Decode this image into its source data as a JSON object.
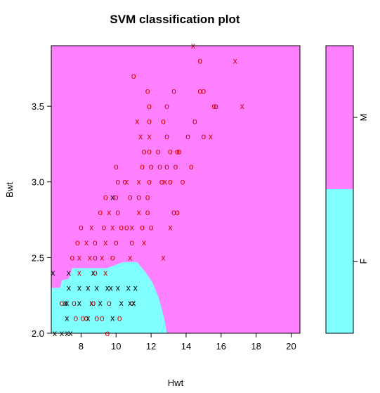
{
  "chart_data": {
    "type": "scatter",
    "title": "SVM classification plot",
    "xlabel": "Hwt",
    "ylabel": "Bwt",
    "xlim": [
      6.3,
      20.5
    ],
    "ylim": [
      2.0,
      3.9
    ],
    "x_ticks": [
      "8",
      "10",
      "12",
      "14",
      "16",
      "18",
      "20"
    ],
    "y_ticks": [
      "2.0",
      "2.5",
      "3.0",
      "3.5"
    ],
    "colors": {
      "M": "#ff80ff",
      "F": "#80ffff",
      "points": "#d00000",
      "support_vectors": "#000000"
    },
    "legend": {
      "position": "right",
      "classes": [
        {
          "label": "M",
          "color": "#ff80ff"
        },
        {
          "label": "F",
          "color": "#80ffff"
        }
      ]
    },
    "f_region_boundary": [
      [
        6.3,
        2.3
      ],
      [
        6.8,
        2.3
      ],
      [
        6.9,
        2.35
      ],
      [
        7.3,
        2.36
      ],
      [
        7.5,
        2.43
      ],
      [
        9.5,
        2.43
      ],
      [
        10.4,
        2.47
      ],
      [
        11.2,
        2.47
      ],
      [
        11.7,
        2.4
      ],
      [
        12.1,
        2.33
      ],
      [
        12.45,
        2.23
      ],
      [
        12.75,
        2.1
      ],
      [
        12.9,
        2.0
      ],
      [
        6.3,
        2.0
      ]
    ],
    "points": [
      {
        "x": 14.4,
        "y": 3.9,
        "m": "x",
        "c": "r"
      },
      {
        "x": 14.8,
        "y": 3.8,
        "m": "o",
        "c": "r"
      },
      {
        "x": 16.8,
        "y": 3.8,
        "m": "x",
        "c": "r"
      },
      {
        "x": 11.0,
        "y": 3.7,
        "m": "o",
        "c": "r"
      },
      {
        "x": 11.8,
        "y": 3.6,
        "m": "o",
        "c": "r"
      },
      {
        "x": 13.3,
        "y": 3.6,
        "m": "o",
        "c": "r"
      },
      {
        "x": 14.8,
        "y": 3.6,
        "m": "o",
        "c": "r"
      },
      {
        "x": 15.0,
        "y": 3.6,
        "m": "o",
        "c": "r"
      },
      {
        "x": 11.9,
        "y": 3.5,
        "m": "o",
        "c": "r"
      },
      {
        "x": 12.9,
        "y": 3.5,
        "m": "o",
        "c": "r"
      },
      {
        "x": 15.6,
        "y": 3.5,
        "m": "o",
        "c": "r"
      },
      {
        "x": 15.7,
        "y": 3.5,
        "m": "o",
        "c": "r"
      },
      {
        "x": 17.2,
        "y": 3.5,
        "m": "x",
        "c": "r"
      },
      {
        "x": 11.2,
        "y": 3.4,
        "m": "x",
        "c": "r"
      },
      {
        "x": 11.9,
        "y": 3.4,
        "m": "o",
        "c": "r"
      },
      {
        "x": 12.7,
        "y": 3.4,
        "m": "o",
        "c": "r"
      },
      {
        "x": 14.5,
        "y": 3.4,
        "m": "o",
        "c": "r"
      },
      {
        "x": 11.4,
        "y": 3.3,
        "m": "x",
        "c": "r"
      },
      {
        "x": 11.9,
        "y": 3.3,
        "m": "x",
        "c": "r"
      },
      {
        "x": 12.9,
        "y": 3.3,
        "m": "o",
        "c": "r"
      },
      {
        "x": 14.1,
        "y": 3.3,
        "m": "o",
        "c": "r"
      },
      {
        "x": 15.0,
        "y": 3.3,
        "m": "o",
        "c": "r"
      },
      {
        "x": 15.4,
        "y": 3.3,
        "m": "x",
        "c": "r"
      },
      {
        "x": 11.6,
        "y": 3.2,
        "m": "o",
        "c": "r"
      },
      {
        "x": 11.9,
        "y": 3.2,
        "m": "o",
        "c": "r"
      },
      {
        "x": 12.4,
        "y": 3.2,
        "m": "o",
        "c": "r"
      },
      {
        "x": 13.1,
        "y": 3.2,
        "m": "o",
        "c": "r"
      },
      {
        "x": 13.5,
        "y": 3.2,
        "m": "o",
        "c": "r"
      },
      {
        "x": 13.6,
        "y": 3.2,
        "m": "o",
        "c": "r"
      },
      {
        "x": 10.0,
        "y": 3.1,
        "m": "o",
        "c": "r"
      },
      {
        "x": 11.5,
        "y": 3.1,
        "m": "o",
        "c": "r"
      },
      {
        "x": 12.0,
        "y": 3.1,
        "m": "o",
        "c": "r"
      },
      {
        "x": 12.5,
        "y": 3.1,
        "m": "o",
        "c": "r"
      },
      {
        "x": 12.9,
        "y": 3.1,
        "m": "o",
        "c": "r"
      },
      {
        "x": 13.4,
        "y": 3.1,
        "m": "o",
        "c": "r"
      },
      {
        "x": 14.3,
        "y": 3.1,
        "m": "o",
        "c": "r"
      },
      {
        "x": 10.1,
        "y": 3.0,
        "m": "o",
        "c": "r"
      },
      {
        "x": 10.5,
        "y": 3.0,
        "m": "o",
        "c": "r"
      },
      {
        "x": 10.6,
        "y": 3.0,
        "m": "x",
        "c": "r"
      },
      {
        "x": 11.3,
        "y": 3.0,
        "m": "x",
        "c": "r"
      },
      {
        "x": 11.9,
        "y": 3.0,
        "m": "o",
        "c": "r"
      },
      {
        "x": 12.6,
        "y": 3.0,
        "m": "o",
        "c": "r"
      },
      {
        "x": 12.8,
        "y": 3.0,
        "m": "x",
        "c": "r"
      },
      {
        "x": 13.1,
        "y": 3.0,
        "m": "o",
        "c": "r"
      },
      {
        "x": 13.8,
        "y": 3.0,
        "m": "o",
        "c": "r"
      },
      {
        "x": 9.4,
        "y": 2.9,
        "m": "o",
        "c": "r"
      },
      {
        "x": 9.8,
        "y": 2.9,
        "m": "x",
        "c": "k"
      },
      {
        "x": 10.0,
        "y": 2.9,
        "m": "o",
        "c": "r"
      },
      {
        "x": 10.8,
        "y": 2.9,
        "m": "o",
        "c": "r"
      },
      {
        "x": 11.3,
        "y": 2.9,
        "m": "o",
        "c": "r"
      },
      {
        "x": 11.8,
        "y": 2.9,
        "m": "o",
        "c": "r"
      },
      {
        "x": 9.6,
        "y": 2.8,
        "m": "x",
        "c": "r"
      },
      {
        "x": 10.1,
        "y": 2.8,
        "m": "o",
        "c": "r"
      },
      {
        "x": 11.3,
        "y": 2.8,
        "m": "x",
        "c": "r"
      },
      {
        "x": 11.8,
        "y": 2.8,
        "m": "o",
        "c": "r"
      },
      {
        "x": 13.3,
        "y": 2.8,
        "m": "o",
        "c": "r"
      },
      {
        "x": 13.5,
        "y": 2.8,
        "m": "o",
        "c": "r"
      },
      {
        "x": 9.1,
        "y": 2.8,
        "m": "o",
        "c": "r"
      },
      {
        "x": 8.0,
        "y": 2.7,
        "m": "o",
        "c": "r"
      },
      {
        "x": 8.6,
        "y": 2.7,
        "m": "x",
        "c": "r"
      },
      {
        "x": 9.3,
        "y": 2.7,
        "m": "o",
        "c": "r"
      },
      {
        "x": 9.8,
        "y": 2.7,
        "m": "x",
        "c": "r"
      },
      {
        "x": 10.3,
        "y": 2.7,
        "m": "o",
        "c": "r"
      },
      {
        "x": 10.6,
        "y": 2.7,
        "m": "o",
        "c": "r"
      },
      {
        "x": 10.9,
        "y": 2.7,
        "m": "x",
        "c": "r"
      },
      {
        "x": 11.5,
        "y": 2.7,
        "m": "o",
        "c": "r"
      },
      {
        "x": 12.0,
        "y": 2.7,
        "m": "o",
        "c": "r"
      },
      {
        "x": 13.1,
        "y": 2.7,
        "m": "x",
        "c": "r"
      },
      {
        "x": 7.8,
        "y": 2.6,
        "m": "o",
        "c": "r"
      },
      {
        "x": 8.3,
        "y": 2.6,
        "m": "x",
        "c": "r"
      },
      {
        "x": 8.8,
        "y": 2.6,
        "m": "o",
        "c": "r"
      },
      {
        "x": 9.4,
        "y": 2.6,
        "m": "x",
        "c": "r"
      },
      {
        "x": 10.0,
        "y": 2.6,
        "m": "o",
        "c": "r"
      },
      {
        "x": 10.9,
        "y": 2.6,
        "m": "o",
        "c": "r"
      },
      {
        "x": 11.6,
        "y": 2.6,
        "m": "x",
        "c": "r"
      },
      {
        "x": 7.5,
        "y": 2.5,
        "m": "o",
        "c": "r"
      },
      {
        "x": 7.9,
        "y": 2.5,
        "m": "x",
        "c": "r"
      },
      {
        "x": 8.5,
        "y": 2.5,
        "m": "x",
        "c": "r"
      },
      {
        "x": 8.8,
        "y": 2.5,
        "m": "o",
        "c": "r"
      },
      {
        "x": 9.2,
        "y": 2.5,
        "m": "x",
        "c": "r"
      },
      {
        "x": 9.8,
        "y": 2.5,
        "m": "o",
        "c": "r"
      },
      {
        "x": 10.8,
        "y": 2.5,
        "m": "x",
        "c": "r"
      },
      {
        "x": 12.7,
        "y": 2.5,
        "m": "x",
        "c": "r"
      },
      {
        "x": 6.4,
        "y": 2.4,
        "m": "x",
        "c": "k"
      },
      {
        "x": 7.3,
        "y": 2.4,
        "m": "x",
        "c": "k"
      },
      {
        "x": 7.9,
        "y": 2.4,
        "m": "x",
        "c": "r"
      },
      {
        "x": 8.7,
        "y": 2.4,
        "m": "x",
        "c": "k"
      },
      {
        "x": 8.8,
        "y": 2.4,
        "m": "o",
        "c": "r"
      },
      {
        "x": 9.4,
        "y": 2.4,
        "m": "x",
        "c": "r"
      },
      {
        "x": 7.3,
        "y": 2.3,
        "m": "x",
        "c": "k"
      },
      {
        "x": 7.9,
        "y": 2.3,
        "m": "x",
        "c": "k"
      },
      {
        "x": 8.4,
        "y": 2.3,
        "m": "x",
        "c": "k"
      },
      {
        "x": 8.9,
        "y": 2.3,
        "m": "x",
        "c": "k"
      },
      {
        "x": 9.5,
        "y": 2.3,
        "m": "x",
        "c": "k"
      },
      {
        "x": 9.7,
        "y": 2.3,
        "m": "x",
        "c": "k"
      },
      {
        "x": 10.1,
        "y": 2.3,
        "m": "x",
        "c": "k"
      },
      {
        "x": 10.7,
        "y": 2.3,
        "m": "x",
        "c": "k"
      },
      {
        "x": 11.1,
        "y": 2.3,
        "m": "x",
        "c": "k"
      },
      {
        "x": 6.9,
        "y": 2.2,
        "m": "o",
        "c": "r"
      },
      {
        "x": 7.1,
        "y": 2.2,
        "m": "x",
        "c": "k"
      },
      {
        "x": 7.2,
        "y": 2.2,
        "m": "x",
        "c": "k"
      },
      {
        "x": 7.6,
        "y": 2.2,
        "m": "o",
        "c": "r"
      },
      {
        "x": 7.9,
        "y": 2.2,
        "m": "x",
        "c": "k"
      },
      {
        "x": 8.6,
        "y": 2.2,
        "m": "x",
        "c": "k"
      },
      {
        "x": 8.7,
        "y": 2.2,
        "m": "o",
        "c": "r"
      },
      {
        "x": 9.1,
        "y": 2.2,
        "m": "x",
        "c": "k"
      },
      {
        "x": 9.6,
        "y": 2.2,
        "m": "o",
        "c": "r"
      },
      {
        "x": 10.3,
        "y": 2.2,
        "m": "x",
        "c": "k"
      },
      {
        "x": 10.8,
        "y": 2.2,
        "m": "x",
        "c": "k"
      },
      {
        "x": 10.9,
        "y": 2.2,
        "m": "o",
        "c": "r"
      },
      {
        "x": 11.0,
        "y": 2.2,
        "m": "x",
        "c": "k"
      },
      {
        "x": 7.2,
        "y": 2.1,
        "m": "x",
        "c": "k"
      },
      {
        "x": 7.7,
        "y": 2.1,
        "m": "o",
        "c": "r"
      },
      {
        "x": 8.1,
        "y": 2.1,
        "m": "o",
        "c": "r"
      },
      {
        "x": 8.3,
        "y": 2.1,
        "m": "o",
        "c": "r"
      },
      {
        "x": 8.4,
        "y": 2.1,
        "m": "x",
        "c": "k"
      },
      {
        "x": 8.9,
        "y": 2.1,
        "m": "o",
        "c": "r"
      },
      {
        "x": 9.2,
        "y": 2.1,
        "m": "o",
        "c": "r"
      },
      {
        "x": 9.8,
        "y": 2.1,
        "m": "x",
        "c": "k"
      },
      {
        "x": 10.2,
        "y": 2.1,
        "m": "o",
        "c": "r"
      },
      {
        "x": 6.5,
        "y": 2.0,
        "m": "x",
        "c": "k"
      },
      {
        "x": 6.9,
        "y": 2.0,
        "m": "x",
        "c": "k"
      },
      {
        "x": 7.2,
        "y": 2.0,
        "m": "x",
        "c": "k"
      },
      {
        "x": 7.4,
        "y": 2.0,
        "m": "x",
        "c": "k"
      },
      {
        "x": 9.5,
        "y": 2.0,
        "m": "o",
        "c": "r"
      }
    ]
  }
}
